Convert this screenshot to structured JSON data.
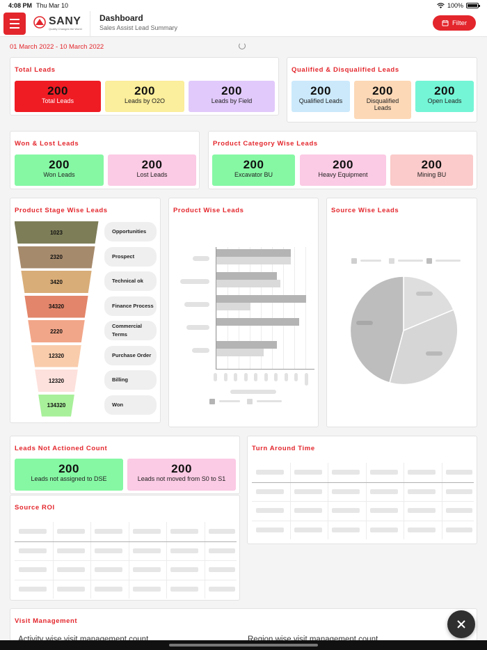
{
  "status": {
    "time": "4:08 PM",
    "date": "Thu Mar 10",
    "battery": "100%"
  },
  "header": {
    "title": "Dashboard",
    "subtitle": "Sales Assist Lead Summary",
    "filter_label": "Filter",
    "logo_text": "SANY",
    "logo_tagline": "Quality Changes the World"
  },
  "date_range": "01 March 2022 - 10 March 2022",
  "total_leads": {
    "title": "Total Leads",
    "tiles": [
      {
        "value": "200",
        "label": "Total Leads",
        "color": "#ef1c24"
      },
      {
        "value": "200",
        "label": "Leads by O2O",
        "color": "#fbee9c"
      },
      {
        "value": "200",
        "label": "Leads by Field",
        "color": "#e1c9fb"
      }
    ]
  },
  "qualified": {
    "title": "Qualified & Disqualified Leads",
    "tiles": [
      {
        "value": "200",
        "label": "Qualified Leads",
        "color": "#cbe9fb"
      },
      {
        "value": "200",
        "label": "Disqualified Leads",
        "color": "#fcd8b6"
      },
      {
        "value": "200",
        "label": "Open Leads",
        "color": "#74f5d6"
      }
    ]
  },
  "won_lost": {
    "title": "Won & Lost Leads",
    "tiles": [
      {
        "value": "200",
        "label": "Won Leads",
        "color": "#86f8a4"
      },
      {
        "value": "200",
        "label": "Lost Leads",
        "color": "#fbcae4"
      }
    ]
  },
  "product_category": {
    "title": "Product Category Wise Leads",
    "tiles": [
      {
        "value": "200",
        "label": "Excavator BU",
        "color": "#86f8a4"
      },
      {
        "value": "200",
        "label": "Heavy Equipment",
        "color": "#fbcae4"
      },
      {
        "value": "200",
        "label": "Mining BU",
        "color": "#fbcaca"
      }
    ]
  },
  "product_stage": {
    "title": "Product Stage Wise Leads",
    "layers": [
      {
        "value": "1023",
        "color": "#7d7d58"
      },
      {
        "value": "2320",
        "color": "#a68a6c"
      },
      {
        "value": "3420",
        "color": "#d9ad78"
      },
      {
        "value": "34320",
        "color": "#e2856a"
      },
      {
        "value": "2220",
        "color": "#f2a689"
      },
      {
        "value": "12320",
        "color": "#f9ccac"
      },
      {
        "value": "12320",
        "color": "#fde1dc"
      },
      {
        "value": "134320",
        "color": "#a8f09a"
      }
    ],
    "stages": [
      "Opportunities",
      "Prospect",
      "Technical ok",
      "Finance Process",
      "Commercial Terms",
      "Purchase Order",
      "Billing",
      "Won"
    ]
  },
  "product_wise": {
    "title": "Product Wise Leads"
  },
  "source_wise": {
    "title": "Source Wise Leads"
  },
  "not_actioned": {
    "title": "Leads Not Actioned Count",
    "tiles": [
      {
        "value": "200",
        "label": "Leads not assigned to DSE",
        "color": "#86f8a4"
      },
      {
        "value": "200",
        "label": "Leads not moved from S0 to S1",
        "color": "#fbcae4"
      }
    ]
  },
  "turn_around": {
    "title": "Turn Around Time"
  },
  "source_roi": {
    "title": "Source ROI"
  },
  "visit_management": {
    "title": "Visit Management",
    "left_label": "Activity wise visit management count",
    "right_label": "Region wise visit management count"
  },
  "colors": {
    "accent": "#e3262c",
    "skeleton": "#e2e2e2"
  }
}
